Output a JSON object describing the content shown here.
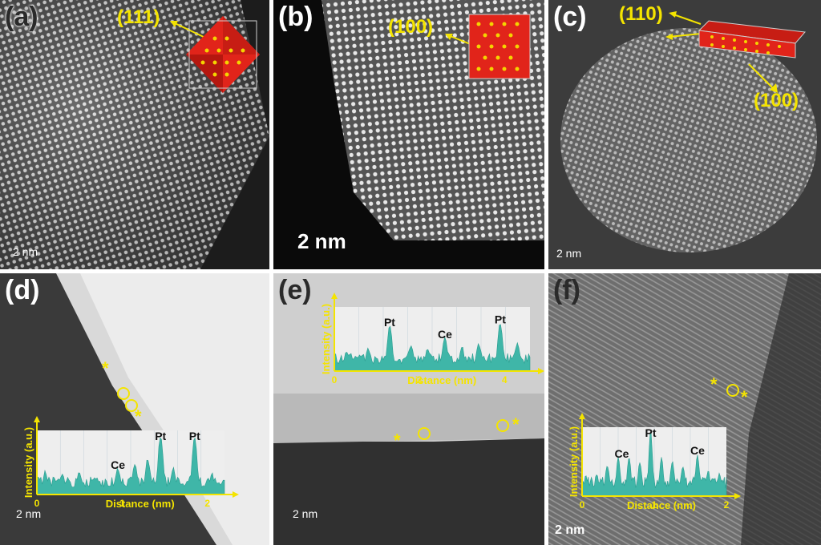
{
  "panels": {
    "a": {
      "label": "(a)",
      "facet": "(111)",
      "scale": "2 nm"
    },
    "b": {
      "label": "(b)",
      "facet": "(100)",
      "scale": "2 nm"
    },
    "c": {
      "label": "(c)",
      "facet_top": "(110)",
      "facet_bottom": "(100)",
      "scale": "2 nm"
    },
    "d": {
      "label": "(d)",
      "scale": "2 nm"
    },
    "e": {
      "label": "(e)",
      "scale": "2 nm"
    },
    "f": {
      "label": "(f)",
      "scale": "2 nm"
    }
  },
  "markers": {
    "star": "*"
  },
  "chart_data": [
    {
      "panel": "d",
      "type": "area",
      "xlabel": "Distance (nm)",
      "ylabel": "Intensity (a.u.)",
      "xlim": [
        0,
        2.2
      ],
      "xticks": [
        "0",
        "1",
        "2"
      ],
      "annotations": [
        {
          "text": "Ce",
          "x": 0.95
        },
        {
          "text": "Pt",
          "x": 1.45
        },
        {
          "text": "Pt",
          "x": 1.85
        }
      ],
      "peaks": [
        [
          0.1,
          0.35
        ],
        [
          0.3,
          0.28
        ],
        [
          0.5,
          0.32
        ],
        [
          0.7,
          0.25
        ],
        [
          0.95,
          0.38
        ],
        [
          1.15,
          0.45
        ],
        [
          1.3,
          0.55
        ],
        [
          1.45,
          0.95
        ],
        [
          1.6,
          0.4
        ],
        [
          1.85,
          0.95
        ],
        [
          2.05,
          0.3
        ]
      ]
    },
    {
      "panel": "e",
      "type": "area",
      "xlabel": "Distance (nm)",
      "ylabel": "Intensity (a.u.)",
      "xlim": [
        0,
        4.6
      ],
      "xticks": [
        "0",
        "2",
        "4"
      ],
      "annotations": [
        {
          "text": "Pt",
          "x": 1.3
        },
        {
          "text": "Ce",
          "x": 2.6
        },
        {
          "text": "Pt",
          "x": 3.9
        }
      ],
      "peaks": [
        [
          0.3,
          0.3
        ],
        [
          0.8,
          0.35
        ],
        [
          1.3,
          0.7
        ],
        [
          1.8,
          0.4
        ],
        [
          2.2,
          0.35
        ],
        [
          2.6,
          0.5
        ],
        [
          3.0,
          0.35
        ],
        [
          3.4,
          0.4
        ],
        [
          3.9,
          0.75
        ],
        [
          4.3,
          0.4
        ]
      ]
    },
    {
      "panel": "f",
      "type": "area",
      "xlabel": "Distance (nm)",
      "ylabel": "Intensity (a.u.)",
      "xlim": [
        0,
        2.0
      ],
      "xticks": [
        "0",
        "1",
        "2"
      ],
      "annotations": [
        {
          "text": "Ce",
          "x": 0.55
        },
        {
          "text": "Pt",
          "x": 0.95
        },
        {
          "text": "Ce",
          "x": 1.6
        }
      ],
      "peaks": [
        [
          0.05,
          0.25
        ],
        [
          0.2,
          0.3
        ],
        [
          0.35,
          0.45
        ],
        [
          0.5,
          0.55
        ],
        [
          0.65,
          0.6
        ],
        [
          0.8,
          0.5
        ],
        [
          0.95,
          0.95
        ],
        [
          1.1,
          0.55
        ],
        [
          1.25,
          0.5
        ],
        [
          1.4,
          0.45
        ],
        [
          1.6,
          0.6
        ],
        [
          1.75,
          0.35
        ],
        [
          1.9,
          0.3
        ]
      ]
    }
  ]
}
